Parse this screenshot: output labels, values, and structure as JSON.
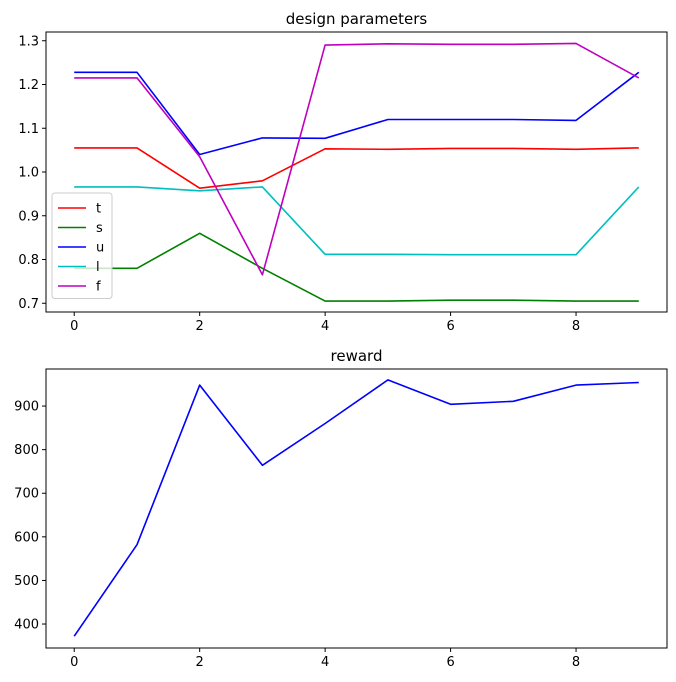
{
  "chart_data": [
    {
      "type": "line",
      "title": "design parameters",
      "xlabel": "",
      "ylabel": "",
      "x": [
        0,
        1,
        2,
        3,
        4,
        5,
        6,
        7,
        8,
        9
      ],
      "xlim": [
        -0.45,
        9.45
      ],
      "ylim": [
        0.68,
        1.32
      ],
      "xticks": [
        0,
        2,
        4,
        6,
        8
      ],
      "yticks": [
        0.7,
        0.8,
        0.9,
        1.0,
        1.1,
        1.2,
        1.3
      ],
      "ytick_labels": [
        "0.7",
        "0.8",
        "0.9",
        "1.0",
        "1.1",
        "1.2",
        "1.3"
      ],
      "grid": false,
      "legend": "center-left",
      "series": [
        {
          "name": "t",
          "color": "#ff0000",
          "values": [
            1.055,
            1.055,
            0.963,
            0.98,
            1.053,
            1.052,
            1.054,
            1.054,
            1.052,
            1.055
          ]
        },
        {
          "name": "s",
          "color": "#008000",
          "values": [
            0.78,
            0.78,
            0.86,
            0.78,
            0.705,
            0.705,
            0.707,
            0.707,
            0.705,
            0.705
          ]
        },
        {
          "name": "u",
          "color": "#0000ff",
          "values": [
            1.228,
            1.228,
            1.04,
            1.078,
            1.077,
            1.12,
            1.12,
            1.12,
            1.118,
            1.228
          ]
        },
        {
          "name": "l",
          "color": "#00bfbf",
          "values": [
            0.966,
            0.966,
            0.957,
            0.966,
            0.812,
            0.812,
            0.811,
            0.811,
            0.811,
            0.966
          ]
        },
        {
          "name": "f",
          "color": "#bf00bf",
          "values": [
            1.215,
            1.215,
            1.035,
            0.765,
            1.29,
            1.293,
            1.292,
            1.292,
            1.294,
            1.215
          ]
        }
      ]
    },
    {
      "type": "line",
      "title": "reward",
      "xlabel": "",
      "ylabel": "",
      "x": [
        0,
        1,
        2,
        3,
        4,
        5,
        6,
        7,
        8,
        9
      ],
      "xlim": [
        -0.45,
        9.45
      ],
      "ylim": [
        345,
        985
      ],
      "xticks": [
        0,
        2,
        4,
        6,
        8
      ],
      "yticks": [
        400,
        500,
        600,
        700,
        800,
        900
      ],
      "ytick_labels": [
        "400",
        "500",
        "600",
        "700",
        "800",
        "900"
      ],
      "grid": false,
      "legend": "none",
      "series": [
        {
          "color": "#0000ff",
          "values": [
            372,
            582,
            948,
            764,
            860,
            960,
            904,
            911,
            948,
            954
          ]
        }
      ]
    }
  ]
}
